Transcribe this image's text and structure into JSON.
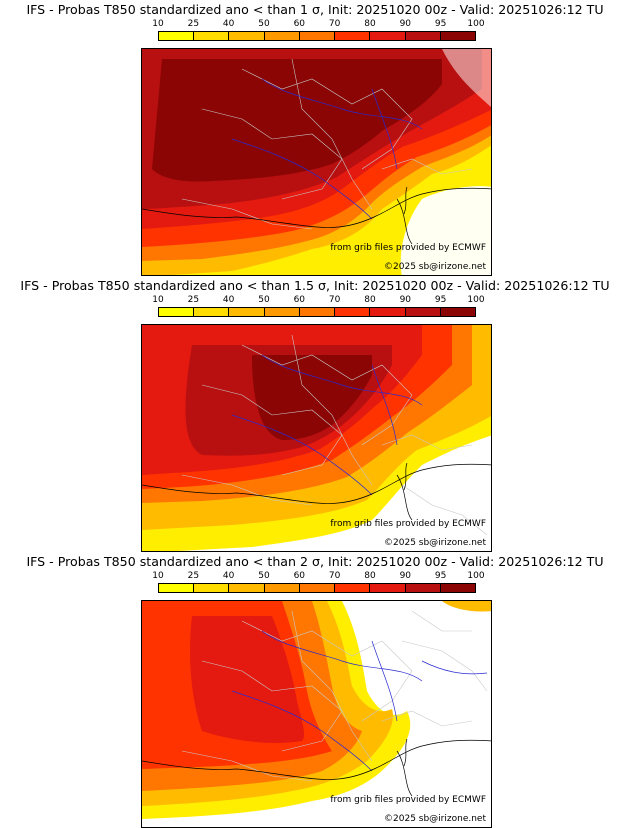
{
  "colorbar": {
    "ticks": [
      "10",
      "25",
      "40",
      "50",
      "60",
      "70",
      "80",
      "90",
      "95",
      "100"
    ],
    "colors": [
      "#ffff00",
      "#ffdd00",
      "#ffbb00",
      "#ff9900",
      "#ff7700",
      "#ff3300",
      "#e41a10",
      "#b81010",
      "#8b0505"
    ]
  },
  "attribution": {
    "source": "from grib files provided by ECMWF",
    "copyright": "©2025 sb@irizone.net"
  },
  "maps": [
    {
      "title": "IFS - Probas T850  standardized ano < than 1 σ, Init: 20251020 00z - Valid: 20251026:12 TU"
    },
    {
      "title": "IFS - Probas T850  standardized ano < than 1.5 σ, Init: 20251020 00z - Valid: 20251026:12 TU"
    },
    {
      "title": "IFS - Probas T850  standardized ano < than 2 σ, Init: 20251020 00z - Valid: 20251026:12 TU"
    }
  ]
}
